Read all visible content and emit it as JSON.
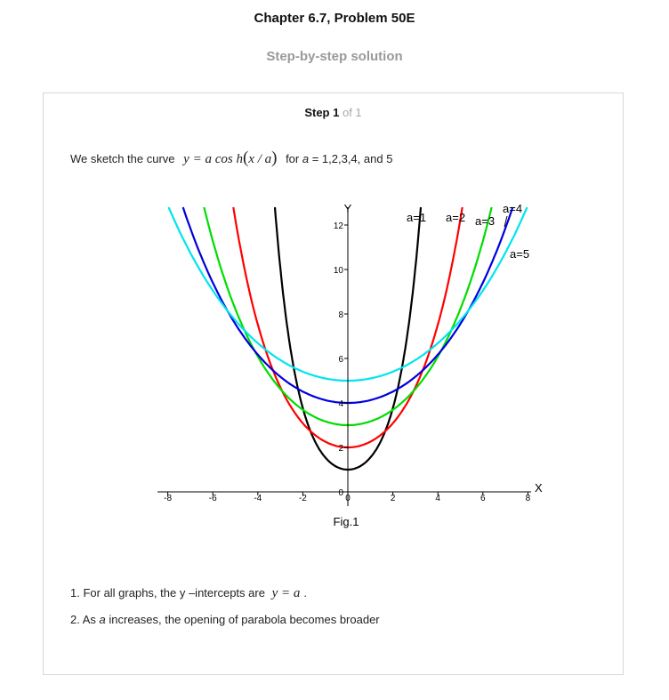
{
  "header": {
    "chapter_title": "Chapter 6.7, Problem 50E",
    "subtitle": "Step-by-step solution"
  },
  "step": {
    "label": "Step 1",
    "of_label": "of 1"
  },
  "intro": {
    "before": "We sketch the curve",
    "formula_left": "y = a cos h",
    "formula_paren_open": "(",
    "formula_inner": "x / a",
    "formula_paren_close": ")",
    "after_prefix": "for ",
    "after_var": "a",
    "after_suffix": " = 1,2,3,4, and 5"
  },
  "figure": {
    "caption": "Fig.1",
    "x_axis_label": "X",
    "y_axis_label": "Y"
  },
  "notes": {
    "note1_text": "1. For all graphs, the y –intercepts are",
    "note1_formula": "y = a",
    "note1_end": ".",
    "note2_prefix": "2. As ",
    "note2_var": "a",
    "note2_suffix": " increases, the opening of parabola becomes broader"
  },
  "chart_data": {
    "type": "line",
    "function": "y = a*cosh(x/a)",
    "xlabel": "X",
    "ylabel": "Y",
    "xlim": [
      -8,
      8
    ],
    "ylim": [
      0,
      12
    ],
    "x_ticks": [
      -8,
      -6,
      -4,
      -2,
      0,
      2,
      4,
      6,
      8
    ],
    "y_ticks": [
      0,
      2,
      4,
      6,
      8,
      10,
      12
    ],
    "series": [
      {
        "name": "a=1",
        "a": 1,
        "color": "#000000"
      },
      {
        "name": "a=2",
        "a": 2,
        "color": "#ff0000"
      },
      {
        "name": "a=3",
        "a": 3,
        "color": "#00dd00"
      },
      {
        "name": "a=4",
        "a": 4,
        "color": "#0000dd"
      },
      {
        "name": "a=5",
        "a": 5,
        "color": "#00e5ee"
      }
    ],
    "grid": false
  }
}
